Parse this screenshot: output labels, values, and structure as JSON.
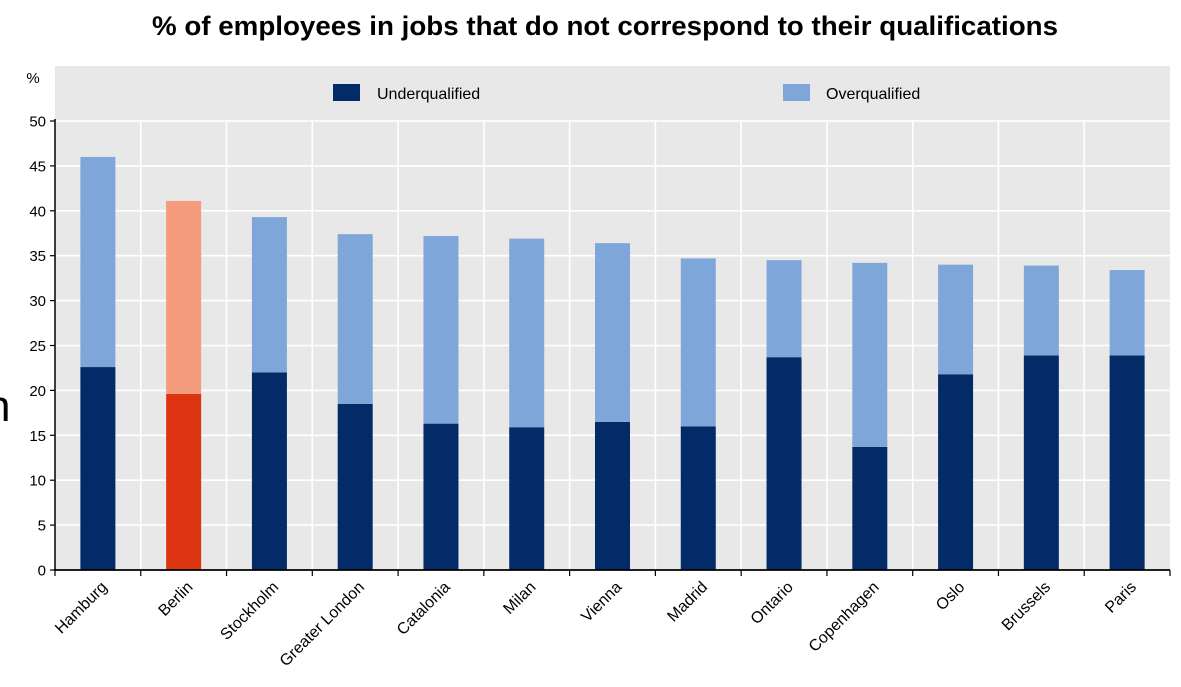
{
  "chart_data": {
    "type": "bar",
    "stacked": true,
    "title": "% of employees in jobs that do not correspond to their qualifications",
    "xlabel": "",
    "ylabel": "%",
    "ylim": [
      0,
      50
    ],
    "yticks": [
      0,
      5,
      10,
      15,
      20,
      25,
      30,
      35,
      40,
      45,
      50
    ],
    "grid": true,
    "legend_position": "top",
    "categories": [
      "Hamburg",
      "Berlin",
      "Stockholm",
      "Greater London",
      "Catalonia",
      "Milan",
      "Vienna",
      "Madrid",
      "Ontario",
      "Copenhagen",
      "Oslo",
      "Brussels",
      "Paris"
    ],
    "series": [
      {
        "name": "Underqualified",
        "color": "#032b68",
        "values": [
          22.6,
          19.6,
          22.0,
          18.5,
          16.3,
          15.9,
          16.5,
          16.0,
          23.7,
          13.7,
          21.8,
          23.9,
          23.9
        ]
      },
      {
        "name": "Overqualified",
        "color": "#7fa6d9",
        "values": [
          23.4,
          21.5,
          17.3,
          18.9,
          20.9,
          21.0,
          19.9,
          18.7,
          10.8,
          20.5,
          12.2,
          10.0,
          9.5
        ]
      }
    ],
    "highlight": {
      "index": 1,
      "colors": [
        "#dc3410",
        "#f59b7d"
      ]
    },
    "background_color": "#e8e8e8",
    "grid_color": "#ffffff"
  },
  "edge_fragment": "n"
}
